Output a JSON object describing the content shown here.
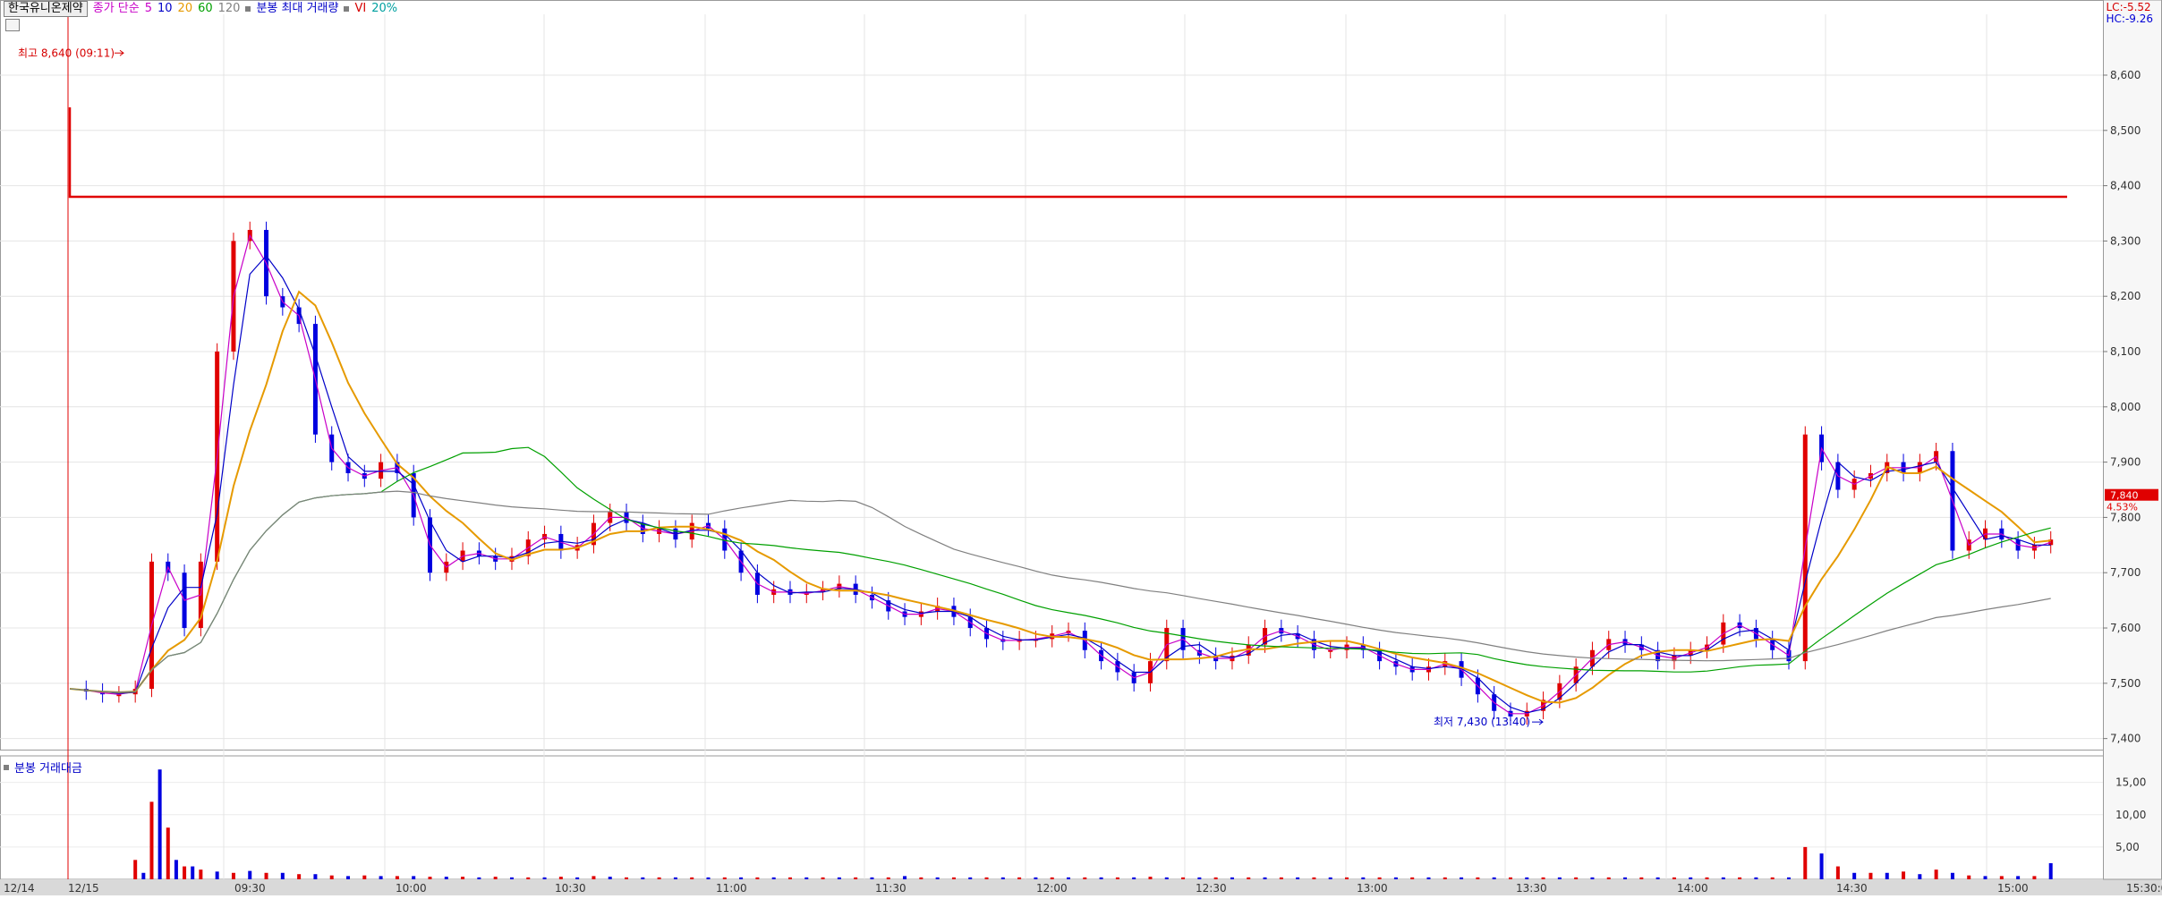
{
  "legend": {
    "stock_name": "한국유니온제약",
    "ma_label": "종가 단순",
    "ma_periods": [
      "5",
      "10",
      "20",
      "60",
      "120"
    ],
    "ma_colors": [
      "#c800c8",
      "#0000c8",
      "#e69a00",
      "#00a000",
      "#808080"
    ],
    "max_volume_label": "분봉 최대 거래량",
    "vi_label": "VI",
    "vi_value": "20%"
  },
  "limits": {
    "lc": "LC:-5.52",
    "hc": "HC:-9.26"
  },
  "volume_panel": {
    "label": "분봉 거래대금"
  },
  "chart_data": {
    "type": "candlestick",
    "price_axis": {
      "ticks": [
        "8,600",
        "8,500",
        "8,400",
        "8,300",
        "8,200",
        "8,100",
        "8,000",
        "7,900",
        "7,800",
        "7,700",
        "7,600",
        "7,500",
        "7,400"
      ],
      "ylim": [
        7380,
        8710
      ]
    },
    "volume_axis": {
      "ticks": [
        "15,00",
        "10,00",
        "5,00"
      ],
      "ylim": [
        0,
        18
      ]
    },
    "time_axis": {
      "labels": [
        "12/14",
        "12/15",
        "09:30",
        "10:00",
        "10:30",
        "11:00",
        "11:30",
        "12:00",
        "12:30",
        "13:00",
        "13:30",
        "14:00",
        "14:30",
        "15:00",
        "15:30:00"
      ]
    },
    "annotations": {
      "high": "최고 8,640 (09:11)",
      "low": "최저 7,430 (13:40)",
      "high_value": 8640,
      "low_value": 7430
    },
    "reference_line": {
      "value": 8380,
      "color": "#e00000"
    },
    "current_price": {
      "price": "7,840",
      "change": "4.53%",
      "value": 7840
    },
    "price_colors": {
      "up": "#e00000",
      "down": "#0000e0"
    },
    "close_path": [
      [
        0,
        7490
      ],
      [
        2,
        7485
      ],
      [
        4,
        7480
      ],
      [
        6,
        7480
      ],
      [
        8,
        7490
      ],
      [
        10,
        7720
      ],
      [
        12,
        7700
      ],
      [
        14,
        7600
      ],
      [
        16,
        7720
      ],
      [
        18,
        8100
      ],
      [
        20,
        8300
      ],
      [
        22,
        8320
      ],
      [
        24,
        8200
      ],
      [
        26,
        8180
      ],
      [
        28,
        8150
      ],
      [
        30,
        7950
      ],
      [
        32,
        7900
      ],
      [
        34,
        7880
      ],
      [
        36,
        7870
      ],
      [
        38,
        7900
      ],
      [
        40,
        7880
      ],
      [
        42,
        7800
      ],
      [
        44,
        7700
      ],
      [
        46,
        7720
      ],
      [
        48,
        7740
      ],
      [
        50,
        7730
      ],
      [
        52,
        7720
      ],
      [
        54,
        7730
      ],
      [
        56,
        7760
      ],
      [
        58,
        7770
      ],
      [
        60,
        7740
      ],
      [
        62,
        7750
      ],
      [
        64,
        7790
      ],
      [
        66,
        7810
      ],
      [
        68,
        7790
      ],
      [
        70,
        7770
      ],
      [
        72,
        7780
      ],
      [
        74,
        7760
      ],
      [
        76,
        7790
      ],
      [
        78,
        7780
      ],
      [
        80,
        7740
      ],
      [
        82,
        7700
      ],
      [
        84,
        7660
      ],
      [
        86,
        7670
      ],
      [
        88,
        7660
      ],
      [
        90,
        7665
      ],
      [
        92,
        7670
      ],
      [
        94,
        7680
      ],
      [
        96,
        7660
      ],
      [
        98,
        7650
      ],
      [
        100,
        7630
      ],
      [
        102,
        7620
      ],
      [
        104,
        7630
      ],
      [
        106,
        7640
      ],
      [
        108,
        7620
      ],
      [
        110,
        7600
      ],
      [
        112,
        7580
      ],
      [
        114,
        7575
      ],
      [
        116,
        7580
      ],
      [
        118,
        7580
      ],
      [
        120,
        7590
      ],
      [
        122,
        7595
      ],
      [
        124,
        7560
      ],
      [
        126,
        7540
      ],
      [
        128,
        7520
      ],
      [
        130,
        7500
      ],
      [
        132,
        7540
      ],
      [
        134,
        7600
      ],
      [
        136,
        7560
      ],
      [
        138,
        7550
      ],
      [
        140,
        7540
      ],
      [
        142,
        7550
      ],
      [
        144,
        7570
      ],
      [
        146,
        7600
      ],
      [
        148,
        7590
      ],
      [
        150,
        7580
      ],
      [
        152,
        7560
      ],
      [
        154,
        7560
      ],
      [
        156,
        7570
      ],
      [
        158,
        7560
      ],
      [
        160,
        7540
      ],
      [
        162,
        7530
      ],
      [
        164,
        7520
      ],
      [
        166,
        7530
      ],
      [
        168,
        7540
      ],
      [
        170,
        7510
      ],
      [
        172,
        7480
      ],
      [
        174,
        7450
      ],
      [
        176,
        7440
      ],
      [
        178,
        7450
      ],
      [
        180,
        7470
      ],
      [
        182,
        7500
      ],
      [
        184,
        7530
      ],
      [
        186,
        7560
      ],
      [
        188,
        7580
      ],
      [
        190,
        7570
      ],
      [
        192,
        7560
      ],
      [
        194,
        7540
      ],
      [
        196,
        7550
      ],
      [
        198,
        7560
      ],
      [
        200,
        7570
      ],
      [
        202,
        7610
      ],
      [
        204,
        7600
      ],
      [
        206,
        7580
      ],
      [
        208,
        7560
      ],
      [
        210,
        7540
      ],
      [
        212,
        7950
      ],
      [
        214,
        7900
      ],
      [
        216,
        7850
      ],
      [
        218,
        7870
      ],
      [
        220,
        7880
      ],
      [
        222,
        7900
      ],
      [
        224,
        7880
      ],
      [
        226,
        7900
      ],
      [
        228,
        7920
      ],
      [
        230,
        7740
      ],
      [
        232,
        7760
      ],
      [
        234,
        7780
      ],
      [
        236,
        7760
      ],
      [
        238,
        7740
      ],
      [
        240,
        7750
      ],
      [
        242,
        7760
      ]
    ],
    "volume": [
      [
        8,
        3
      ],
      [
        9,
        1
      ],
      [
        10,
        12
      ],
      [
        11,
        17
      ],
      [
        12,
        8
      ],
      [
        13,
        3
      ],
      [
        14,
        2
      ],
      [
        15,
        2
      ],
      [
        16,
        1.5
      ],
      [
        18,
        1.2
      ],
      [
        20,
        1
      ],
      [
        22,
        1.3
      ],
      [
        24,
        1
      ],
      [
        26,
        1
      ],
      [
        28,
        0.8
      ],
      [
        30,
        0.8
      ],
      [
        32,
        0.6
      ],
      [
        34,
        0.5
      ],
      [
        36,
        0.6
      ],
      [
        38,
        0.5
      ],
      [
        40,
        0.5
      ],
      [
        42,
        0.5
      ],
      [
        44,
        0.4
      ],
      [
        46,
        0.4
      ],
      [
        48,
        0.4
      ],
      [
        50,
        0.3
      ],
      [
        52,
        0.4
      ],
      [
        54,
        0.3
      ],
      [
        56,
        0.3
      ],
      [
        58,
        0.3
      ],
      [
        60,
        0.4
      ],
      [
        62,
        0.3
      ],
      [
        64,
        0.5
      ],
      [
        66,
        0.4
      ],
      [
        68,
        0.3
      ],
      [
        70,
        0.3
      ],
      [
        72,
        0.3
      ],
      [
        74,
        0.3
      ],
      [
        76,
        0.3
      ],
      [
        78,
        0.3
      ],
      [
        80,
        0.3
      ],
      [
        82,
        0.3
      ],
      [
        84,
        0.3
      ],
      [
        86,
        0.3
      ],
      [
        88,
        0.3
      ],
      [
        90,
        0.3
      ],
      [
        92,
        0.3
      ],
      [
        94,
        0.3
      ],
      [
        96,
        0.3
      ],
      [
        98,
        0.3
      ],
      [
        100,
        0.3
      ],
      [
        102,
        0.5
      ],
      [
        104,
        0.3
      ],
      [
        106,
        0.3
      ],
      [
        108,
        0.3
      ],
      [
        110,
        0.3
      ],
      [
        112,
        0.3
      ],
      [
        114,
        0.3
      ],
      [
        116,
        0.3
      ],
      [
        118,
        0.3
      ],
      [
        120,
        0.3
      ],
      [
        122,
        0.3
      ],
      [
        124,
        0.3
      ],
      [
        126,
        0.3
      ],
      [
        128,
        0.3
      ],
      [
        130,
        0.3
      ],
      [
        132,
        0.4
      ],
      [
        134,
        0.3
      ],
      [
        136,
        0.3
      ],
      [
        138,
        0.3
      ],
      [
        140,
        0.3
      ],
      [
        142,
        0.3
      ],
      [
        144,
        0.3
      ],
      [
        146,
        0.3
      ],
      [
        148,
        0.3
      ],
      [
        150,
        0.3
      ],
      [
        152,
        0.3
      ],
      [
        154,
        0.3
      ],
      [
        156,
        0.3
      ],
      [
        158,
        0.3
      ],
      [
        160,
        0.3
      ],
      [
        162,
        0.3
      ],
      [
        164,
        0.3
      ],
      [
        166,
        0.3
      ],
      [
        168,
        0.3
      ],
      [
        170,
        0.3
      ],
      [
        172,
        0.3
      ],
      [
        174,
        0.3
      ],
      [
        176,
        0.3
      ],
      [
        178,
        0.3
      ],
      [
        180,
        0.3
      ],
      [
        182,
        0.3
      ],
      [
        184,
        0.3
      ],
      [
        186,
        0.3
      ],
      [
        188,
        0.3
      ],
      [
        190,
        0.3
      ],
      [
        192,
        0.3
      ],
      [
        194,
        0.3
      ],
      [
        196,
        0.3
      ],
      [
        198,
        0.3
      ],
      [
        200,
        0.3
      ],
      [
        202,
        0.3
      ],
      [
        204,
        0.3
      ],
      [
        206,
        0.3
      ],
      [
        208,
        0.3
      ],
      [
        210,
        0.3
      ],
      [
        212,
        5
      ],
      [
        214,
        4
      ],
      [
        216,
        2
      ],
      [
        218,
        1
      ],
      [
        220,
        1
      ],
      [
        222,
        1
      ],
      [
        224,
        1.2
      ],
      [
        226,
        0.8
      ],
      [
        228,
        1.5
      ],
      [
        230,
        1
      ],
      [
        232,
        0.6
      ],
      [
        234,
        0.5
      ],
      [
        236,
        0.5
      ],
      [
        238,
        0.5
      ],
      [
        240,
        0.5
      ],
      [
        242,
        2.5
      ]
    ]
  }
}
